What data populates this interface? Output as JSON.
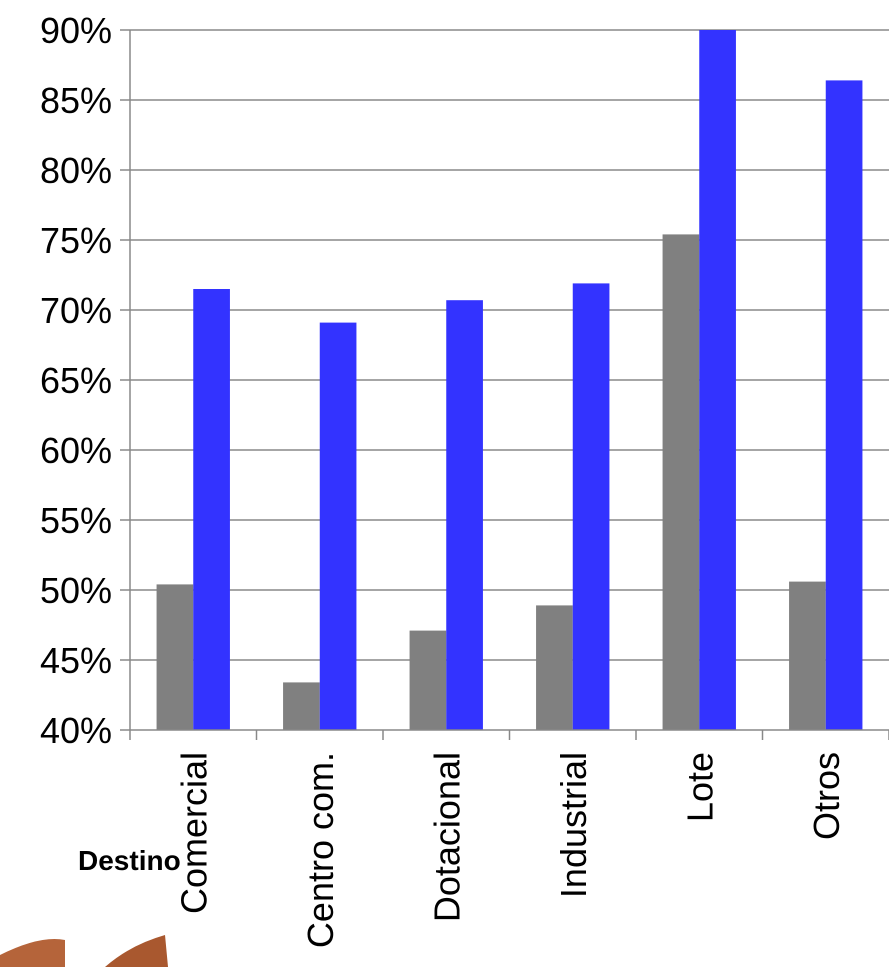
{
  "chart_data": {
    "type": "bar",
    "categories": [
      "Comercial",
      "Centro com.",
      "Dotacional",
      "Industrial",
      "Lote",
      "Otros"
    ],
    "series": [
      {
        "values": [
          50.4,
          43.4,
          47.1,
          48.9,
          75.4,
          50.6
        ],
        "color": "#808080"
      },
      {
        "values": [
          71.5,
          69.1,
          70.7,
          71.9,
          90.0,
          86.4
        ],
        "color": "#3333ff"
      }
    ],
    "yticks": [
      "40%",
      "45%",
      "50%",
      "55%",
      "60%",
      "65%",
      "70%",
      "75%",
      "80%",
      "85%",
      "90%"
    ],
    "ylim": [
      40,
      90
    ],
    "xlabel": "Destino",
    "ylabel": "",
    "title": "",
    "grid": true,
    "legend": "none"
  }
}
